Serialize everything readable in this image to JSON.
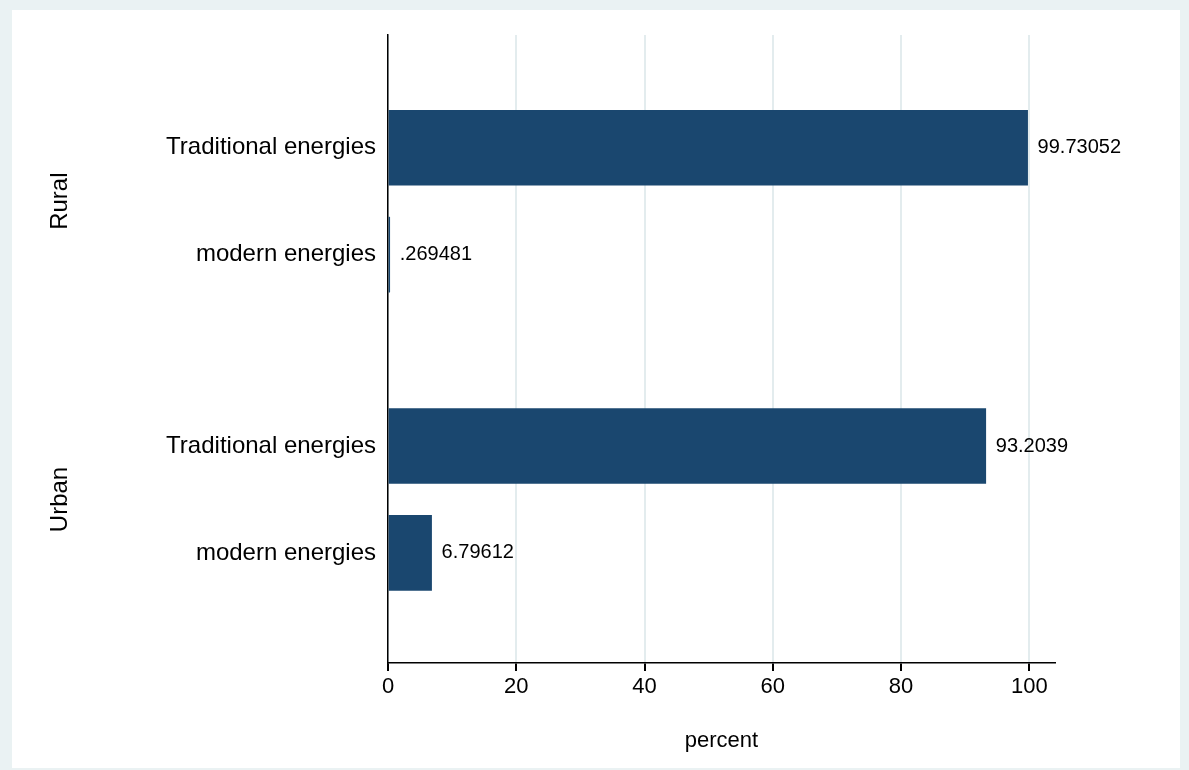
{
  "chart_data": {
    "type": "bar",
    "orientation": "horizontal",
    "categories": [
      "Traditional energies",
      "modern energies",
      "Traditional energies",
      "modern energies"
    ],
    "values": [
      99.73052,
      0.269481,
      93.2039,
      6.79612
    ],
    "value_labels": [
      "99.73052",
      ".269481",
      "93.2039",
      "6.79612"
    ],
    "color": "#1a476f",
    "xlabel": "percent",
    "xlim": [
      0,
      104
    ],
    "xticks": [
      0,
      20,
      40,
      60,
      80,
      100
    ],
    "grid": "x",
    "annotations": [
      "Rural",
      "Urban"
    ]
  }
}
